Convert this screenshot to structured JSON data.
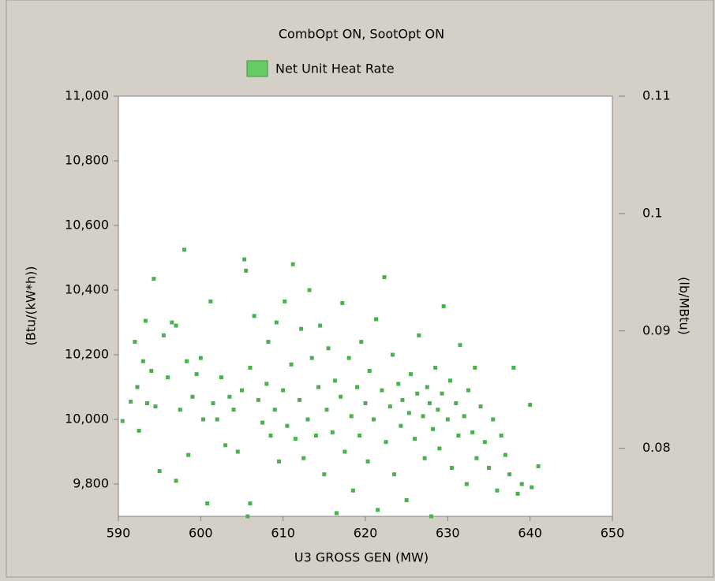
{
  "chart_data": {
    "type": "scatter",
    "title": "CombOpt ON, SootOpt ON",
    "xlabel": "U3 GROSS GEN (MW)",
    "ylabel": "(Btu/(kW*h))",
    "y2label": "(lb/MBtu)",
    "xlim": [
      590,
      650
    ],
    "xticks": [
      590,
      600,
      610,
      620,
      630,
      640,
      650
    ],
    "ylim": [
      9700,
      11000
    ],
    "yticks": [
      {
        "value": 9800,
        "label": "9,800"
      },
      {
        "value": 10000,
        "label": "10,000"
      },
      {
        "value": 10200,
        "label": "10,200"
      },
      {
        "value": 10400,
        "label": "10,400"
      },
      {
        "value": 10600,
        "label": "10,600"
      },
      {
        "value": 10800,
        "label": "10,800"
      },
      {
        "value": 11000,
        "label": "11,000"
      }
    ],
    "y2lim": [
      0.0742,
      0.11
    ],
    "y2ticks": [
      0.08,
      0.09,
      0.1,
      0.11
    ],
    "legend": "top",
    "series": [
      {
        "name": "Net Unit Heat Rate",
        "color": "#4caf50",
        "x": [
          590.5,
          591.5,
          592,
          592.3,
          592.5,
          593,
          593.3,
          593.5,
          594,
          594.3,
          594.5,
          595,
          595.5,
          596,
          596.5,
          597,
          597,
          597.5,
          598,
          598.3,
          598.5,
          599,
          599.5,
          600,
          600.3,
          600.8,
          601.2,
          601.5,
          602,
          602.5,
          603,
          603.5,
          604,
          604.5,
          605,
          605.3,
          605.5,
          605.7,
          606,
          606,
          606.5,
          607,
          607.5,
          608,
          608.2,
          608.5,
          609,
          609.2,
          609.5,
          610,
          610.2,
          610.5,
          611,
          611.2,
          611.5,
          612,
          612.2,
          612.5,
          613,
          613.2,
          613.5,
          614,
          614.3,
          614.5,
          615,
          615.3,
          615.5,
          616,
          616.3,
          616.5,
          617,
          617.2,
          617.5,
          618,
          618.3,
          618.5,
          619,
          619.3,
          619.5,
          620,
          620.3,
          620.5,
          621,
          621.3,
          621.5,
          622,
          622.3,
          622.5,
          623,
          623.3,
          623.5,
          624,
          624.3,
          624.5,
          625,
          625.3,
          625.5,
          626,
          626.3,
          626.5,
          627,
          627.2,
          627.5,
          627.8,
          628,
          628.2,
          628.5,
          628.8,
          629,
          629.3,
          629.5,
          630,
          630.3,
          630.5,
          631,
          631.3,
          631.5,
          632,
          632.3,
          632.5,
          633,
          633.3,
          633.5,
          634,
          634.5,
          635,
          635.5,
          636,
          636.5,
          637,
          637.5,
          638,
          638.5,
          639,
          640,
          640.2,
          641
        ],
        "values": [
          9995,
          10055,
          10240,
          10100,
          9965,
          10180,
          10305,
          10050,
          10150,
          10435,
          10040,
          9840,
          10260,
          10130,
          10300,
          10290,
          9810,
          10030,
          10525,
          10180,
          9890,
          10070,
          10140,
          10190,
          10000,
          9740,
          10365,
          10050,
          10000,
          10130,
          9920,
          10070,
          10030,
          9900,
          10090,
          10495,
          10460,
          9700,
          10160,
          9740,
          10320,
          10060,
          9990,
          10110,
          10240,
          9950,
          10030,
          10300,
          9870,
          10090,
          10365,
          9980,
          10170,
          10480,
          9940,
          10060,
          10280,
          9880,
          10000,
          10400,
          10190,
          9950,
          10100,
          10290,
          9830,
          10030,
          10220,
          9960,
          10120,
          9710,
          10070,
          10360,
          9900,
          10190,
          10010,
          9780,
          10100,
          9950,
          10240,
          10050,
          9870,
          10150,
          10000,
          10310,
          9720,
          10090,
          10440,
          9930,
          10040,
          10200,
          9830,
          10110,
          9980,
          10060,
          9750,
          10020,
          10140,
          9940,
          10080,
          10260,
          10010,
          9880,
          10100,
          10050,
          9700,
          9970,
          10160,
          10030,
          9910,
          10080,
          10350,
          10000,
          10120,
          9850,
          10050,
          9950,
          10230,
          10010,
          9800,
          10090,
          9960,
          10160,
          9880,
          10040,
          9930,
          9850,
          10000,
          9780,
          9950,
          9890,
          9830,
          10160,
          9770,
          9800,
          10045,
          9790,
          9855
        ]
      }
    ]
  }
}
